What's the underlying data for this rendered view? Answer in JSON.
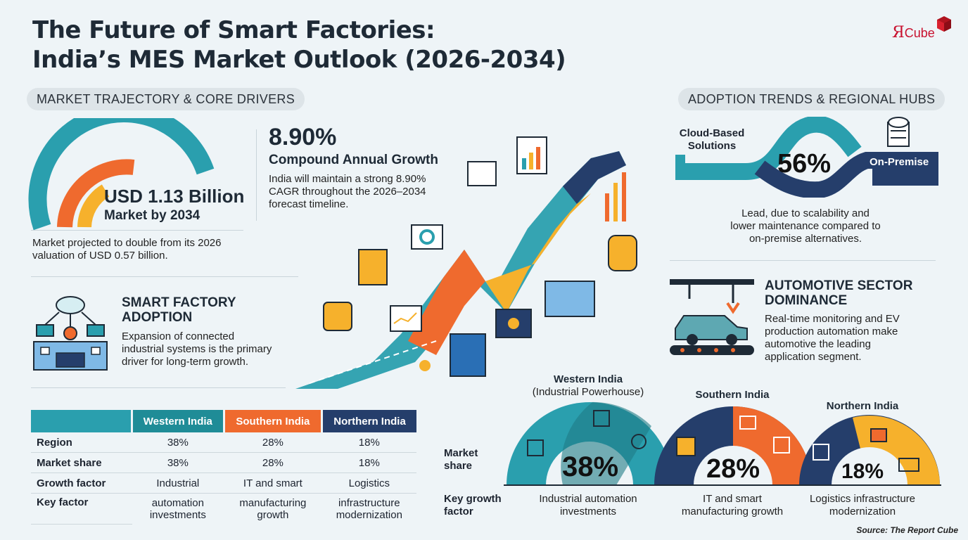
{
  "title_line1": "The Future of Smart Factories:",
  "title_line2": "India’s MES Market Outlook (2026-2034)",
  "logo": {
    "letter": "Я",
    "text": "Cube"
  },
  "left_pill": "MARKET TRAJECTORY & CORE DRIVERS",
  "right_pill": "ADOPTION TRENDS & REGIONAL HUBS",
  "market": {
    "value": "USD 1.13 Billion",
    "sub": "Market by 2034",
    "note_line1": "Market projected to double from its 2026",
    "note_line2": "valuation of USD 0.57 billion."
  },
  "cagr": {
    "value": "8.90%",
    "label": "Compound Annual Growth",
    "desc_line1": "India will maintain a strong 8.90%",
    "desc_line2": "CAGR throughout the 2026–2034",
    "desc_line3": "forecast timeline."
  },
  "smart": {
    "title_line1": "SMART FACTORY",
    "title_line2": "ADOPTION",
    "desc_line1": "Expansion of connected",
    "desc_line2": "industrial systems is the primary",
    "desc_line3": "driver for long-term growth."
  },
  "table": {
    "headers": [
      "Western India",
      "Southern India",
      "Northern India"
    ],
    "rows": [
      {
        "label": "Region",
        "cells": [
          "38%",
          "28%",
          "18%"
        ]
      },
      {
        "label": "Market share",
        "cells": [
          "38%",
          "28%",
          "18%"
        ]
      },
      {
        "label": "Growth factor",
        "cells": [
          "Industrial",
          "IT and smart",
          "Logistics"
        ]
      },
      {
        "label": "Key factor",
        "cells": [
          [
            "automation",
            "investments"
          ],
          [
            "manufacturing",
            "growth"
          ],
          [
            "infrastructure",
            "modernization"
          ]
        ]
      }
    ]
  },
  "cloud": {
    "left_line1": "Cloud-Based",
    "left_line2": "Solutions",
    "pct": "56%",
    "right": "On-Premise",
    "desc_line1": "Lead, due to scalability and",
    "desc_line2": "lower maintenance compared to",
    "desc_line3": "on-premise alternatives."
  },
  "auto": {
    "title_line1": "AUTOMOTIVE SECTOR",
    "title_line2": "DOMINANCE",
    "desc_line1": "Real-time monitoring and EV",
    "desc_line2": "production automation make",
    "desc_line3": "automotive the leading",
    "desc_line4": "application segment."
  },
  "hubs": {
    "row_label1": [
      "Market",
      "share"
    ],
    "row_label2": [
      "Key growth",
      "factor"
    ],
    "western": {
      "title1": "Western India",
      "title2": "(Industrial Powerhouse)",
      "pct": "38%",
      "cap1": "Industrial automation",
      "cap2": "investments"
    },
    "southern": {
      "title1": "Southern India",
      "pct": "28%",
      "cap1": "IT and smart",
      "cap2": "manufacturing growth"
    },
    "northern": {
      "title1": "Northern India",
      "pct": "18%",
      "cap1": "Logistics infrastructure",
      "cap2": "modernization"
    }
  },
  "source": "Source: The Report Cube",
  "colors": {
    "teal": "#2a9fae",
    "orange": "#ef6a2e",
    "yellow": "#f6b12c",
    "navy": "#253e6b",
    "dark": "#1e2a36"
  }
}
